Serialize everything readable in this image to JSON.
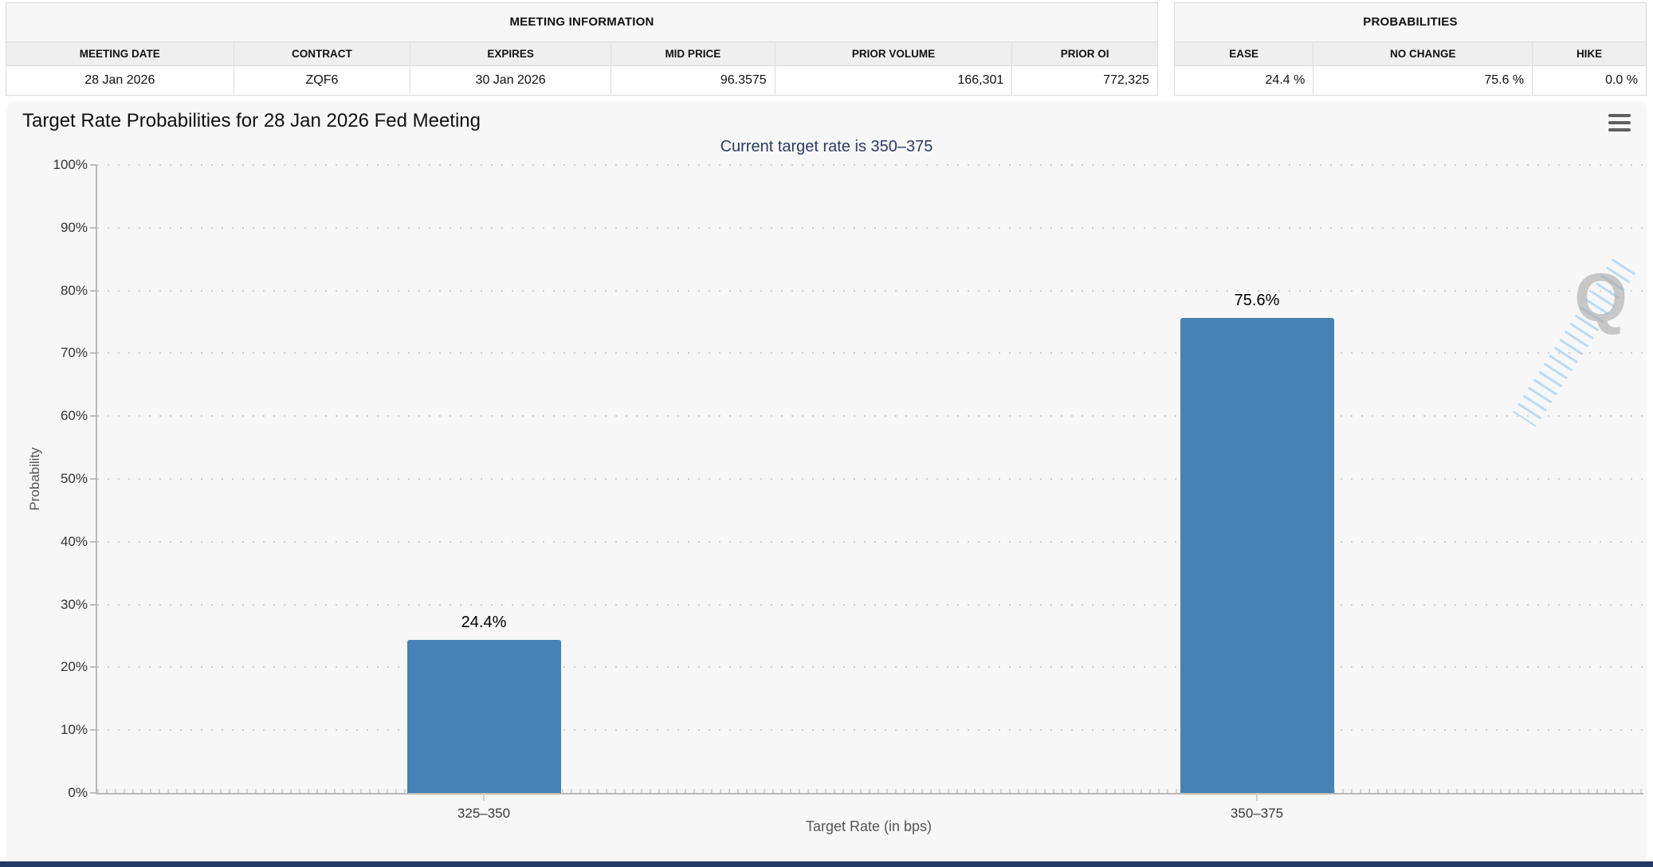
{
  "meeting_information": {
    "title": "MEETING INFORMATION",
    "columns": [
      "MEETING DATE",
      "CONTRACT",
      "EXPIRES",
      "MID PRICE",
      "PRIOR VOLUME",
      "PRIOR OI"
    ],
    "values": [
      "28 Jan 2026",
      "ZQF6",
      "30 Jan 2026",
      "96.3575",
      "166,301",
      "772,325"
    ]
  },
  "probabilities_summary": {
    "title": "PROBABILITIES",
    "columns": [
      "EASE",
      "NO CHANGE",
      "HIKE"
    ],
    "values": [
      "24.4 %",
      "75.6 %",
      "0.0 %"
    ]
  },
  "chart": {
    "title": "Target Rate Probabilities for 28 Jan 2026 Fed Meeting",
    "subtitle": "Current target rate is 350–375",
    "menu_icon": "hamburger-menu",
    "watermark_letter": "Q"
  },
  "chart_data": {
    "type": "bar",
    "title": "Target Rate Probabilities for 28 Jan 2026 Fed Meeting",
    "subtitle": "Current target rate is 350–375",
    "categories": [
      "325–350",
      "350–375"
    ],
    "values": [
      24.4,
      75.6
    ],
    "bar_labels": [
      "24.4%",
      "75.6%"
    ],
    "xlabel": "Target Rate (in bps)",
    "ylabel": "Probability",
    "ylim": [
      0,
      100
    ],
    "yticks": [
      "0%",
      "10%",
      "20%",
      "30%",
      "40%",
      "50%",
      "60%",
      "70%",
      "80%",
      "90%",
      "100%"
    ],
    "grid": "dotted-horizontal",
    "legend": "none",
    "bar_color": "#4682b4"
  },
  "colors": {
    "bar": "#4682b4",
    "subtitle_text": "#2b3a64",
    "panel_background": "#f7f7f7",
    "bottom_bar": "#213a66"
  }
}
